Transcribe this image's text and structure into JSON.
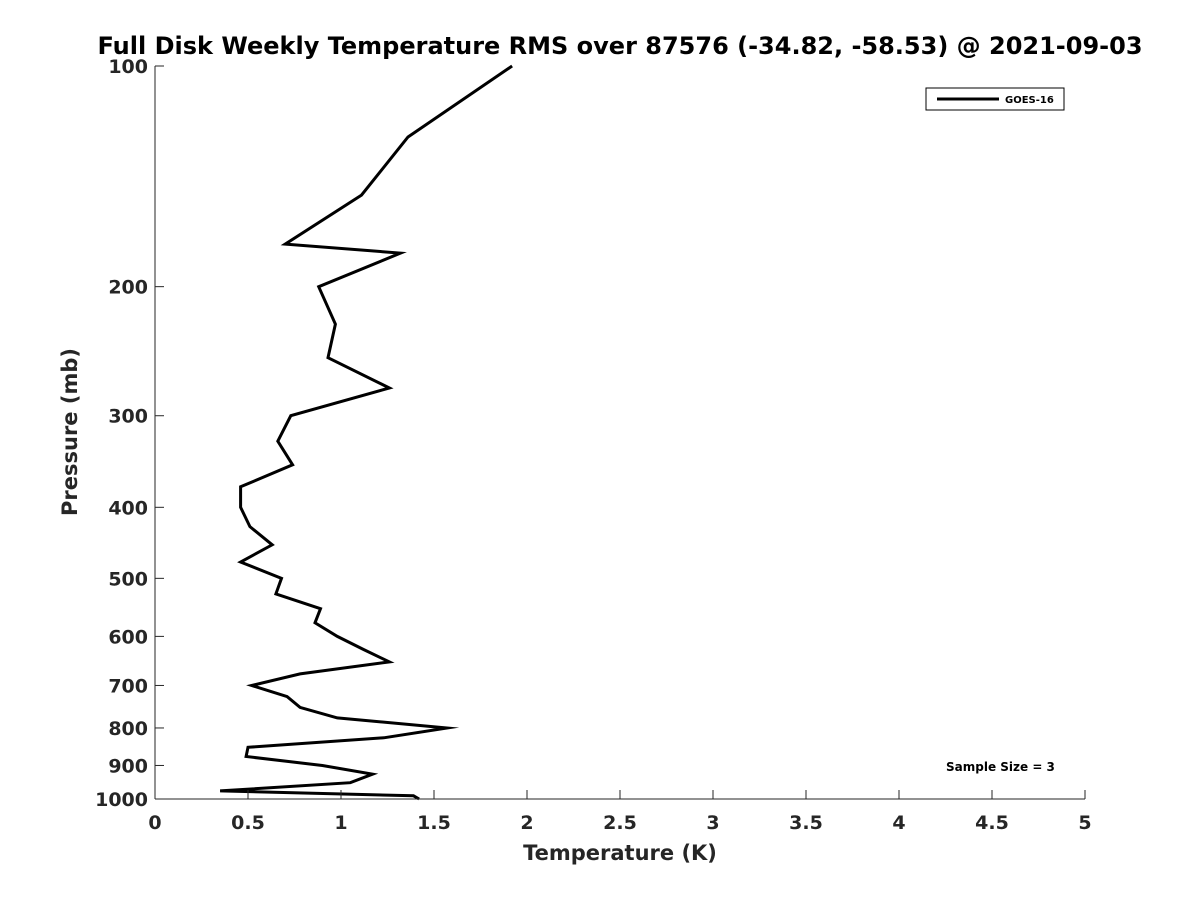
{
  "chart_data": {
    "type": "line",
    "title": "Full Disk Weekly Temperature RMS over 87576 (-34.82, -58.53) @ 2021-09-03",
    "xlabel": "Temperature (K)",
    "ylabel": "Pressure (mb)",
    "xlim": [
      0,
      5
    ],
    "ylim": [
      100,
      1000
    ],
    "y_scale": "log",
    "y_reversed": true,
    "x_ticks": [
      0,
      0.5,
      1,
      1.5,
      2,
      2.5,
      3,
      3.5,
      4,
      4.5,
      5
    ],
    "x_tick_labels": [
      "0",
      "0.5",
      "1",
      "1.5",
      "2",
      "2.5",
      "3",
      "3.5",
      "4",
      "4.5",
      "5"
    ],
    "y_ticks": [
      100,
      200,
      300,
      400,
      500,
      600,
      700,
      800,
      900,
      1000
    ],
    "y_tick_labels": [
      "100",
      "200",
      "300",
      "400",
      "500",
      "600",
      "700",
      "800",
      "900",
      "1000"
    ],
    "grid": false,
    "legend_position": "top-right",
    "annotation": "Sample Size = 3",
    "series": [
      {
        "name": "GOES-16",
        "color": "#000000",
        "points": [
          [
            1.92,
            100
          ],
          [
            1.36,
            125
          ],
          [
            1.11,
            150
          ],
          [
            0.7,
            175
          ],
          [
            1.32,
            180
          ],
          [
            0.88,
            200
          ],
          [
            0.97,
            225
          ],
          [
            0.93,
            250
          ],
          [
            1.26,
            275
          ],
          [
            0.73,
            300
          ],
          [
            0.66,
            325
          ],
          [
            0.74,
            350
          ],
          [
            0.46,
            375
          ],
          [
            0.46,
            400
          ],
          [
            0.51,
            425
          ],
          [
            0.63,
            450
          ],
          [
            0.46,
            475
          ],
          [
            0.68,
            500
          ],
          [
            0.65,
            525
          ],
          [
            0.89,
            550
          ],
          [
            0.86,
            575
          ],
          [
            0.98,
            600
          ],
          [
            1.12,
            625
          ],
          [
            1.26,
            650
          ],
          [
            0.78,
            675
          ],
          [
            0.52,
            700
          ],
          [
            0.71,
            725
          ],
          [
            0.78,
            750
          ],
          [
            0.98,
            775
          ],
          [
            1.57,
            800
          ],
          [
            1.23,
            825
          ],
          [
            0.5,
            850
          ],
          [
            0.49,
            875
          ],
          [
            0.9,
            900
          ],
          [
            1.17,
            925
          ],
          [
            1.05,
            950
          ],
          [
            0.35,
            975
          ],
          [
            1.39,
            990
          ],
          [
            1.42,
            1000
          ]
        ]
      }
    ]
  }
}
